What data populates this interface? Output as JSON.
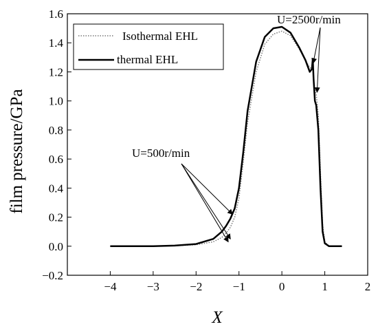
{
  "chart_data": {
    "type": "line",
    "title": "",
    "xlabel": "X",
    "ylabel": "film pressure/GPa",
    "xlim": [
      -5,
      2
    ],
    "ylim": [
      -0.2,
      1.6
    ],
    "xticks": [
      -4,
      -3,
      -2,
      -1,
      0,
      1,
      2
    ],
    "xtick_labels": [
      "−4",
      "−3",
      "−2",
      "−1",
      "0",
      "1",
      "2"
    ],
    "yticks": [
      -0.2,
      0.0,
      0.2,
      0.4,
      0.6,
      0.8,
      1.0,
      1.2,
      1.4,
      1.6
    ],
    "ytick_labels": [
      "−0.2",
      "0.0",
      "0.2",
      "0.4",
      "0.6",
      "0.8",
      "1.0",
      "1.2",
      "1.4",
      "1.6"
    ],
    "grid": false,
    "legend_position": "top-left",
    "series": [
      {
        "name": "Isothermal EHL",
        "style": "dotted",
        "color": "#777777",
        "x": [
          -4.0,
          -3.0,
          -2.5,
          -2.0,
          -1.6,
          -1.4,
          -1.3,
          -1.2,
          -1.1,
          -1.0,
          -0.9,
          -0.8,
          -0.6,
          -0.4,
          -0.2,
          0.0,
          0.2,
          0.4,
          0.55,
          0.65,
          0.7,
          0.72,
          0.75,
          0.78,
          0.8,
          0.85,
          0.9,
          0.95,
          1.0,
          1.1,
          1.4
        ],
        "y": [
          0.0,
          0.0,
          0.003,
          0.01,
          0.03,
          0.06,
          0.09,
          0.13,
          0.2,
          0.33,
          0.58,
          0.85,
          1.2,
          1.39,
          1.46,
          1.48,
          1.45,
          1.36,
          1.28,
          1.23,
          1.22,
          1.23,
          1.12,
          1.06,
          1.05,
          0.9,
          0.5,
          0.15,
          0.03,
          0.0,
          0.0
        ]
      },
      {
        "name": "thermal EHL",
        "style": "solid",
        "color": "#000000",
        "x": [
          -4.0,
          -3.0,
          -2.5,
          -2.0,
          -1.6,
          -1.4,
          -1.3,
          -1.2,
          -1.1,
          -1.0,
          -0.9,
          -0.8,
          -0.6,
          -0.4,
          -0.2,
          0.0,
          0.2,
          0.4,
          0.55,
          0.65,
          0.7,
          0.72,
          0.74,
          0.77,
          0.8,
          0.85,
          0.9,
          0.95,
          1.0,
          1.1,
          1.4
        ],
        "y": [
          0.0,
          0.0,
          0.004,
          0.015,
          0.05,
          0.1,
          0.14,
          0.19,
          0.26,
          0.4,
          0.65,
          0.93,
          1.27,
          1.44,
          1.5,
          1.51,
          1.47,
          1.37,
          1.28,
          1.2,
          1.22,
          1.29,
          1.15,
          1.0,
          0.97,
          0.8,
          0.4,
          0.1,
          0.02,
          0.0,
          0.0
        ]
      }
    ],
    "annotations": [
      {
        "text": "U=2500r/min",
        "arrow_targets": [
          [
            0.73,
            1.26
          ],
          [
            0.82,
            1.06
          ]
        ]
      },
      {
        "text": "U=500r/min",
        "arrow_targets": [
          [
            -1.15,
            0.22
          ],
          [
            -1.2,
            0.05
          ],
          [
            -1.25,
            0.03
          ]
        ]
      }
    ]
  }
}
